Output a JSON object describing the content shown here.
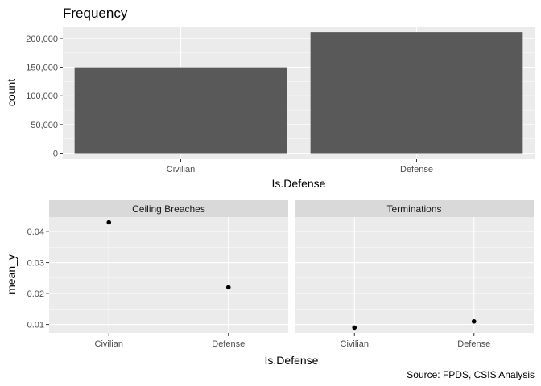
{
  "chart_data": [
    {
      "type": "bar",
      "title": "Frequency",
      "xlabel": "Is.Defense",
      "ylabel": "count",
      "categories": [
        "Civilian",
        "Defense"
      ],
      "values": [
        150000,
        211000
      ],
      "yticks": [
        0,
        50000,
        100000,
        150000,
        200000
      ],
      "ytick_labels": [
        "0",
        "50,000",
        "100,000",
        "150,000",
        "200,000"
      ],
      "ylim": [
        -10500,
        221000
      ],
      "grid": true,
      "colors": {
        "panel": "#ebebeb",
        "bar": "#595959",
        "grid": "#ffffff"
      }
    },
    {
      "type": "scatter",
      "xlabel": "Is.Defense",
      "ylabel": "mean_y",
      "categories": [
        "Civilian",
        "Defense"
      ],
      "yticks": [
        0.01,
        0.02,
        0.03,
        0.04
      ],
      "ytick_labels": [
        "0.01",
        "0.02",
        "0.03",
        "0.04"
      ],
      "ylim": [
        0.0073,
        0.0447
      ],
      "grid": true,
      "facets": [
        {
          "name": "Ceiling Breaches",
          "values": [
            0.043,
            0.022
          ]
        },
        {
          "name": "Terminations",
          "values": [
            0.009,
            0.011
          ]
        }
      ],
      "colors": {
        "panel": "#ebebeb",
        "strip": "#d9d9d9",
        "point": "#000000",
        "grid": "#ffffff"
      }
    }
  ],
  "caption": "Source: FPDS, CSIS Analysis"
}
